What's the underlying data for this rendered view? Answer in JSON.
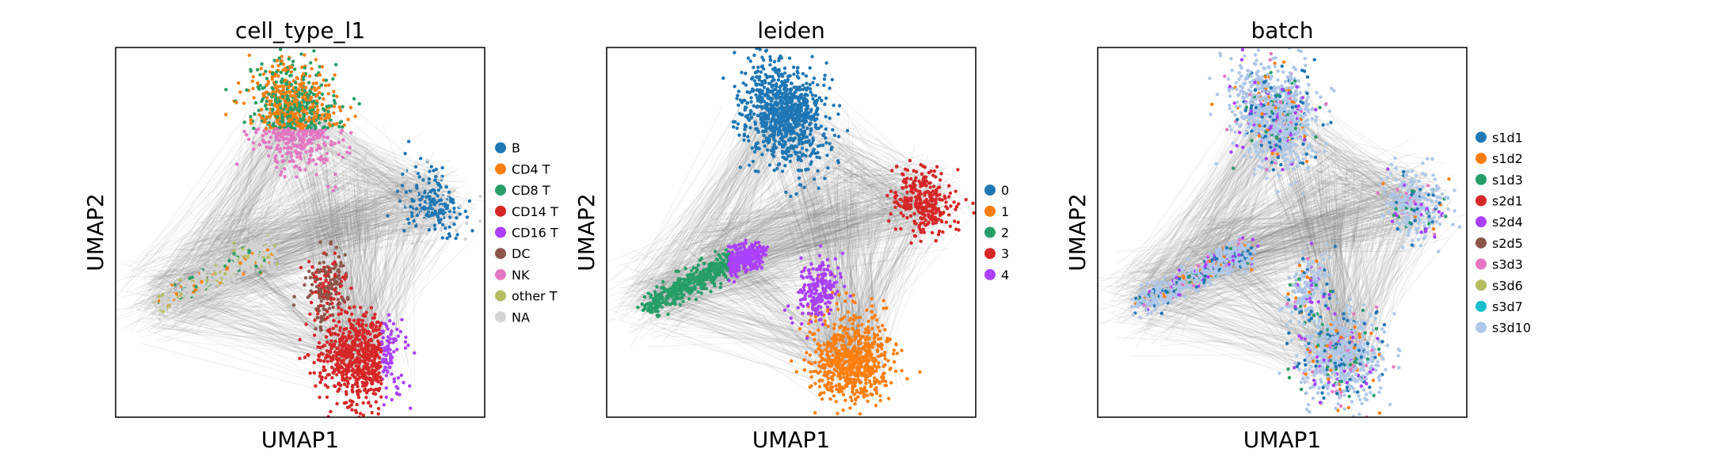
{
  "chart_data": [
    {
      "type": "scatter",
      "title": "cell_type_l1",
      "xlabel": "UMAP1",
      "ylabel": "UMAP2",
      "grid": false,
      "ticks": false,
      "legend": "right",
      "series": [
        {
          "name": "B",
          "color": "#1f77b4"
        },
        {
          "name": "CD4 T",
          "color": "#ff7f0e"
        },
        {
          "name": "CD8 T",
          "color": "#279e68"
        },
        {
          "name": "CD14 T",
          "color": "#d62728"
        },
        {
          "name": "CD16 T",
          "color": "#aa40fc"
        },
        {
          "name": "DC",
          "color": "#8c564b"
        },
        {
          "name": "NK",
          "color": "#e377c2"
        },
        {
          "name": "other T",
          "color": "#b5bd61"
        },
        {
          "name": "NA",
          "color": "#d3d3d3"
        }
      ]
    },
    {
      "type": "scatter",
      "title": "leiden",
      "xlabel": "UMAP1",
      "ylabel": "UMAP2",
      "grid": false,
      "ticks": false,
      "legend": "right",
      "series": [
        {
          "name": "0",
          "color": "#1f77b4"
        },
        {
          "name": "1",
          "color": "#ff7f0e"
        },
        {
          "name": "2",
          "color": "#279e68"
        },
        {
          "name": "3",
          "color": "#d62728"
        },
        {
          "name": "4",
          "color": "#aa40fc"
        }
      ]
    },
    {
      "type": "scatter",
      "title": "batch",
      "xlabel": "UMAP1",
      "ylabel": "UMAP2",
      "grid": false,
      "ticks": false,
      "legend": "right",
      "series": [
        {
          "name": "s1d1",
          "color": "#1f77b4"
        },
        {
          "name": "s1d2",
          "color": "#ff7f0e"
        },
        {
          "name": "s1d3",
          "color": "#279e68"
        },
        {
          "name": "s2d1",
          "color": "#d62728"
        },
        {
          "name": "s2d4",
          "color": "#aa40fc"
        },
        {
          "name": "s2d5",
          "color": "#8c564b"
        },
        {
          "name": "s3d3",
          "color": "#e377c2"
        },
        {
          "name": "s3d6",
          "color": "#b5bd61"
        },
        {
          "name": "s3d7",
          "color": "#17becf"
        },
        {
          "name": "s3d10",
          "color": "#aec7e8"
        }
      ]
    }
  ]
}
